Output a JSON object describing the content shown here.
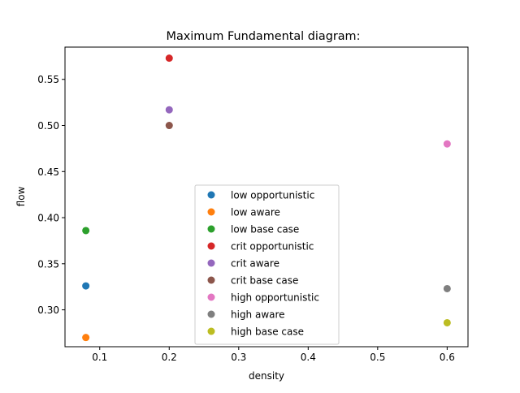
{
  "chart_data": {
    "type": "scatter",
    "title": "Maximum Fundamental diagram:",
    "xlabel": "density",
    "ylabel": "flow",
    "xlim": [
      0.05,
      0.63
    ],
    "ylim": [
      0.26,
      0.585
    ],
    "xticks": [
      {
        "value": 0.1,
        "label": "0.1"
      },
      {
        "value": 0.2,
        "label": "0.2"
      },
      {
        "value": 0.3,
        "label": "0.3"
      },
      {
        "value": 0.4,
        "label": "0.4"
      },
      {
        "value": 0.5,
        "label": "0.5"
      },
      {
        "value": 0.6,
        "label": "0.6"
      }
    ],
    "yticks": [
      {
        "value": 0.3,
        "label": "0.30"
      },
      {
        "value": 0.35,
        "label": "0.35"
      },
      {
        "value": 0.4,
        "label": "0.40"
      },
      {
        "value": 0.45,
        "label": "0.45"
      },
      {
        "value": 0.5,
        "label": "0.50"
      },
      {
        "value": 0.55,
        "label": "0.55"
      }
    ],
    "grid": false,
    "legend_position": "lower center",
    "series": [
      {
        "name": "low opportunistic",
        "color": "#1f77b4",
        "points": [
          {
            "x": 0.08,
            "y": 0.326
          }
        ]
      },
      {
        "name": "low aware",
        "color": "#ff7f0e",
        "points": [
          {
            "x": 0.08,
            "y": 0.27
          }
        ]
      },
      {
        "name": "low base case",
        "color": "#2ca02c",
        "points": [
          {
            "x": 0.08,
            "y": 0.386
          }
        ]
      },
      {
        "name": "crit opportunistic",
        "color": "#d62728",
        "points": [
          {
            "x": 0.2,
            "y": 0.573
          }
        ]
      },
      {
        "name": "crit aware",
        "color": "#9467bd",
        "points": [
          {
            "x": 0.2,
            "y": 0.517
          }
        ]
      },
      {
        "name": "crit base case",
        "color": "#8c564b",
        "points": [
          {
            "x": 0.2,
            "y": 0.5
          }
        ]
      },
      {
        "name": "high opportunistic",
        "color": "#e377c2",
        "points": [
          {
            "x": 0.6,
            "y": 0.48
          }
        ]
      },
      {
        "name": "high aware",
        "color": "#7f7f7f",
        "points": [
          {
            "x": 0.6,
            "y": 0.323
          }
        ]
      },
      {
        "name": "high base case",
        "color": "#bcbd22",
        "points": [
          {
            "x": 0.6,
            "y": 0.286
          }
        ]
      }
    ]
  }
}
